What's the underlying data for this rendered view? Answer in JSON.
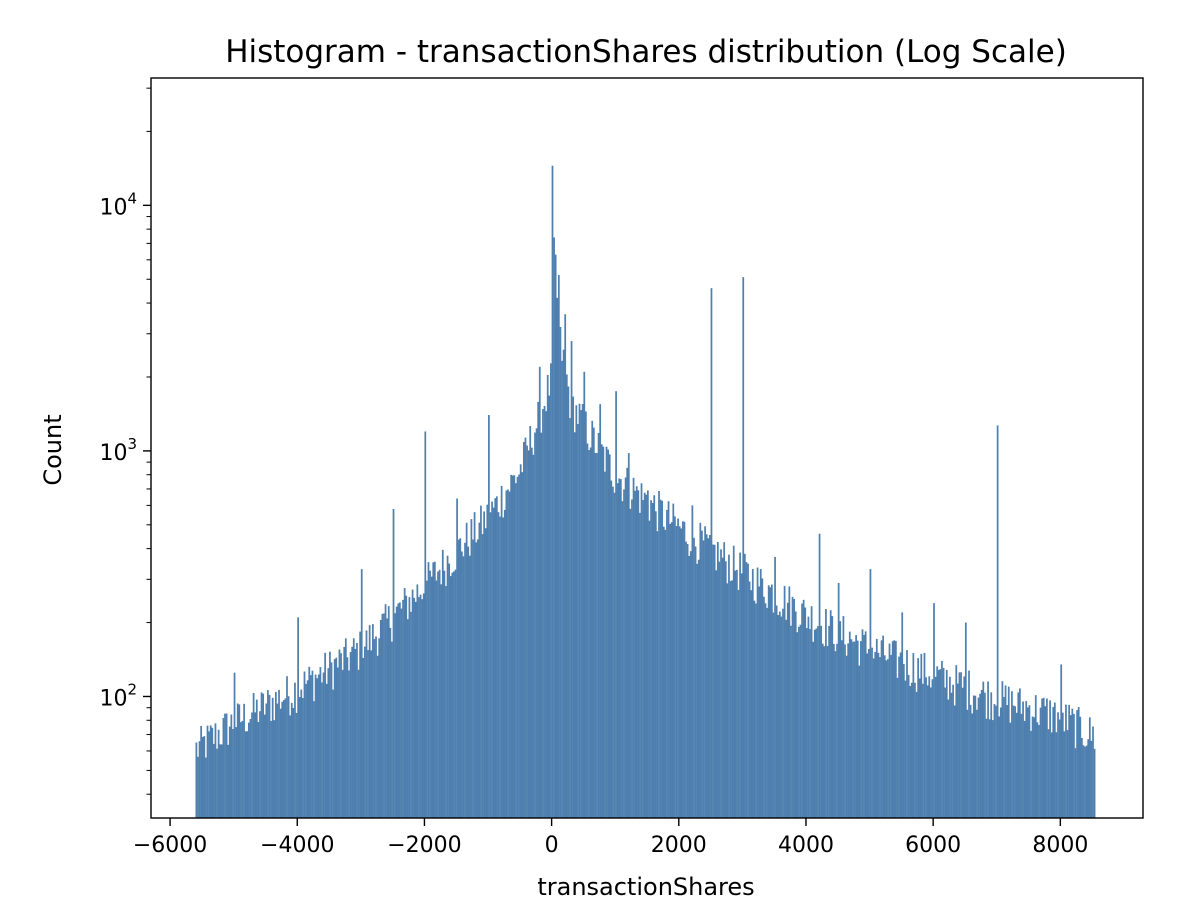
{
  "chart_data": {
    "type": "histogram",
    "title": "Histogram - transactionShares distribution (Log Scale)",
    "xlabel": "transactionShares",
    "ylabel": "Count",
    "yscale": "log",
    "xlim": [
      -6300,
      9300
    ],
    "ylim": [
      32,
      33000
    ],
    "grid": false,
    "legend": "none",
    "bar_color": "#4e7fae",
    "x_ticks": [
      {
        "value": -6000,
        "label": "−6000"
      },
      {
        "value": -4000,
        "label": "−4000"
      },
      {
        "value": -2000,
        "label": "−2000"
      },
      {
        "value": 0,
        "label": "0"
      },
      {
        "value": 2000,
        "label": "2000"
      },
      {
        "value": 4000,
        "label": "4000"
      },
      {
        "value": 6000,
        "label": "6000"
      },
      {
        "value": 8000,
        "label": "8000"
      }
    ],
    "y_ticks": [
      {
        "value": 100,
        "base": "10",
        "exp": "2"
      },
      {
        "value": 1000,
        "base": "10",
        "exp": "3"
      },
      {
        "value": 10000,
        "base": "10",
        "exp": "4"
      }
    ],
    "bin_range": [
      -5600,
      8550
    ],
    "bin_width": 25,
    "profile": {
      "description_points": [
        [
          -5600,
          62
        ],
        [
          -5000,
          80
        ],
        [
          -4000,
          110
        ],
        [
          -3000,
          160
        ],
        [
          -2000,
          290
        ],
        [
          -1000,
          550
        ],
        [
          -500,
          850
        ],
        [
          -200,
          1400
        ],
        [
          0,
          2000
        ],
        [
          100,
          3200
        ],
        [
          300,
          1600
        ],
        [
          1000,
          820
        ],
        [
          2000,
          500
        ],
        [
          3000,
          330
        ],
        [
          4000,
          220
        ],
        [
          5000,
          160
        ],
        [
          6000,
          125
        ],
        [
          7000,
          100
        ],
        [
          8000,
          85
        ],
        [
          8550,
          70
        ]
      ]
    },
    "spikes": [
      {
        "x": 0,
        "count": 14500
      },
      {
        "x": 25,
        "count": 7400
      },
      {
        "x": 50,
        "count": 6300
      },
      {
        "x": 75,
        "count": 4200
      },
      {
        "x": 100,
        "count": 5200
      },
      {
        "x": 200,
        "count": 3600
      },
      {
        "x": -200,
        "count": 2200
      },
      {
        "x": 300,
        "count": 2800
      },
      {
        "x": 500,
        "count": 2100
      },
      {
        "x": 1000,
        "count": 1750
      },
      {
        "x": -1000,
        "count": 1400
      },
      {
        "x": 750,
        "count": 1550
      },
      {
        "x": 2500,
        "count": 4600
      },
      {
        "x": 3000,
        "count": 5100
      },
      {
        "x": -2000,
        "count": 1200
      },
      {
        "x": -2500,
        "count": 580
      },
      {
        "x": 1500,
        "count": 690
      },
      {
        "x": 4200,
        "count": 460
      },
      {
        "x": 5000,
        "count": 330
      },
      {
        "x": 7000,
        "count": 1270
      },
      {
        "x": 3500,
        "count": 370
      },
      {
        "x": -3000,
        "count": 330
      },
      {
        "x": -4000,
        "count": 210
      },
      {
        "x": 6000,
        "count": 240
      },
      {
        "x": 8000,
        "count": 135
      },
      {
        "x": 4500,
        "count": 290
      },
      {
        "x": 2200,
        "count": 600
      },
      {
        "x": -1500,
        "count": 640
      },
      {
        "x": 5500,
        "count": 220
      },
      {
        "x": 6500,
        "count": 200
      },
      {
        "x": -5000,
        "count": 125
      },
      {
        "x": 1200,
        "count": 980
      }
    ]
  }
}
